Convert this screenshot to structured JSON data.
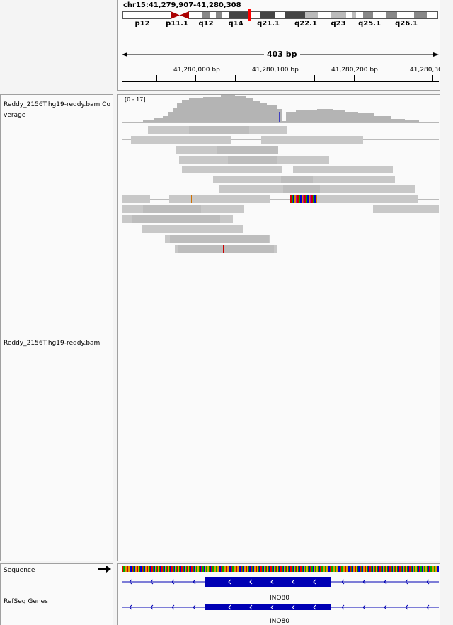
{
  "locus": "chr15:41,279,907-41,280,308",
  "ideogram": {
    "bands": [
      "p12",
      "p11.1",
      "q12",
      "q14",
      "q21.1",
      "q22.1",
      "q23",
      "q25.1",
      "q26.1"
    ]
  },
  "ruler": {
    "span": "403 bp",
    "ticks": [
      "41,280,000 bp",
      "41,280,100 bp",
      "41,280,200 bp",
      "41,280,30"
    ]
  },
  "tracks": {
    "coverage_name": "Reddy_2156T.hg19-reddy.bam Coverage",
    "coverage_range": "[0 - 17]",
    "alignment_name": "Reddy_2156T.hg19-reddy.bam",
    "sequence_name": "Sequence",
    "refseq_name": "RefSeq Genes",
    "gene_label_1": "INO80",
    "gene_label_2": "INO80"
  },
  "colors": {
    "coverage": "#b4b4b4",
    "read": "#c8c8c8",
    "gene": "#0000b4",
    "centromere": "#aa0000",
    "locus_marker": "#ff0000"
  }
}
